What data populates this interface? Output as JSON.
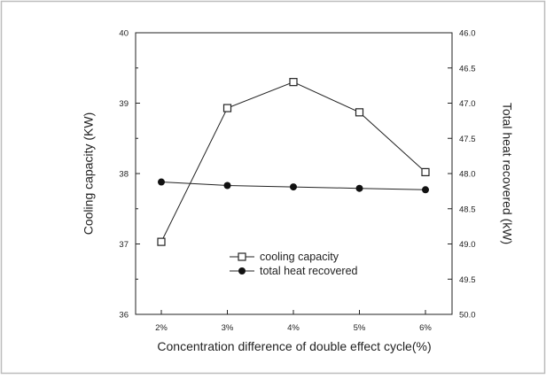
{
  "chart_data": {
    "type": "line",
    "title": "",
    "xlabel": "Concentration difference of double effect cycle(%)",
    "ylabel_left": "Cooling capacity (KW)",
    "ylabel_right": "Total heat recovered (kW)",
    "categories": [
      "2%",
      "3%",
      "4%",
      "5%",
      "6%"
    ],
    "y_left": {
      "lim": [
        36,
        40
      ],
      "ticks": [
        "36",
        "37",
        "38",
        "39",
        "40"
      ]
    },
    "y_right": {
      "lim": [
        46.0,
        50.0
      ],
      "inverted": true,
      "ticks": [
        "46.0",
        "46.5",
        "47.0",
        "47.5",
        "48.0",
        "48.5",
        "49.0",
        "49.5",
        "50.0"
      ]
    },
    "series": [
      {
        "name": "cooling capacity",
        "axis": "left",
        "marker": "open-square",
        "values": [
          37.03,
          38.93,
          39.3,
          38.87,
          38.02
        ]
      },
      {
        "name": "total heat recovered",
        "axis": "right",
        "marker": "filled-circle",
        "values": [
          48.12,
          48.17,
          48.19,
          48.21,
          48.23
        ]
      }
    ],
    "legend_position": "lower-center",
    "grid": false
  }
}
